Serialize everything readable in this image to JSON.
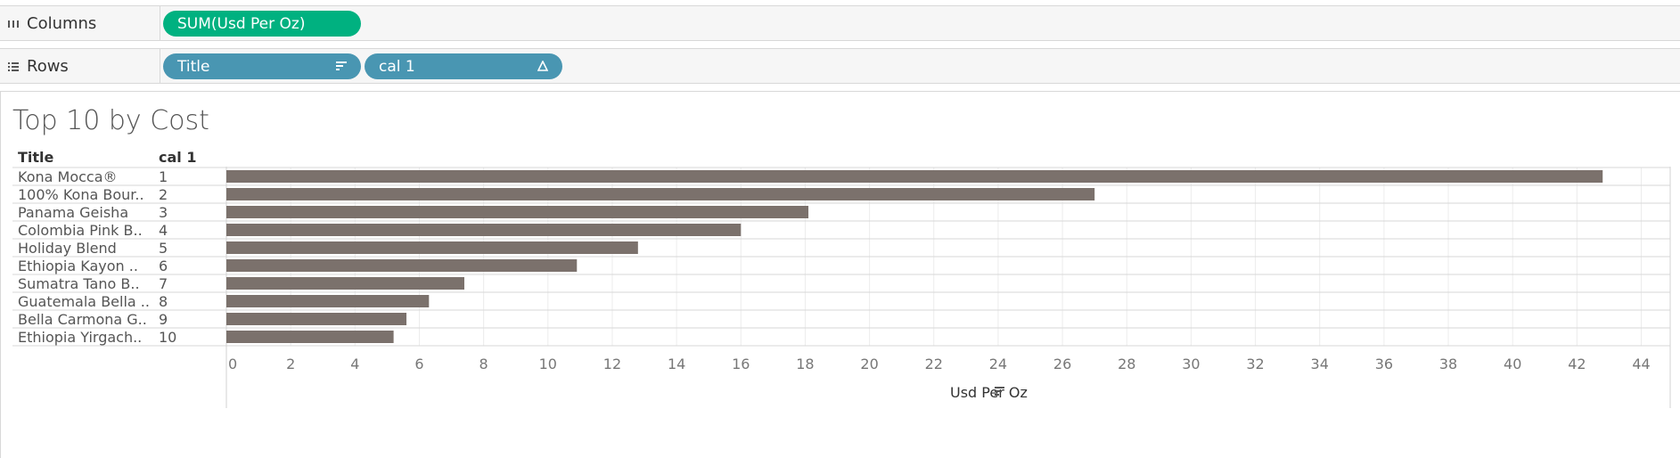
{
  "shelves": {
    "columns": {
      "label": "Columns",
      "icon": "columns-icon",
      "pills": [
        {
          "label": "SUM(Usd Per Oz)",
          "color": "#00b180"
        }
      ]
    },
    "rows": {
      "label": "Rows",
      "icon": "rows-icon",
      "pills": [
        {
          "label": "Title",
          "color": "#4996b2",
          "icon": "sort-icon"
        },
        {
          "label": "cal 1",
          "color": "#4996b2",
          "icon": "delta-icon"
        }
      ]
    }
  },
  "chart_data": {
    "type": "bar",
    "orientation": "horizontal",
    "title": "Top 10 by Cost",
    "row_headers": [
      "Title",
      "cal 1"
    ],
    "categories": [
      "Kona Mocca®",
      "100% Kona Bour..",
      "Panama Geisha",
      "Colombia Pink B..",
      "Holiday Blend",
      "Ethiopia Kayon ..",
      "Sumatra Tano B..",
      "Guatemala Bella ..",
      "Bella Carmona G..",
      "Ethiopia Yirgach.."
    ],
    "ranks": [
      "1",
      "2",
      "3",
      "4",
      "5",
      "6",
      "7",
      "8",
      "9",
      "10"
    ],
    "values": [
      42.8,
      27.0,
      18.1,
      16.0,
      12.8,
      10.9,
      7.4,
      6.3,
      5.6,
      5.2
    ],
    "xlabel": "Usd Per Oz",
    "xlim": [
      0,
      44.9
    ],
    "xticks": [
      "0",
      "2",
      "4",
      "6",
      "8",
      "10",
      "12",
      "14",
      "16",
      "18",
      "20",
      "22",
      "24",
      "26",
      "28",
      "30",
      "32",
      "34",
      "36",
      "38",
      "40",
      "42",
      "44"
    ],
    "bar_color": "#7b716c",
    "grid": true
  }
}
